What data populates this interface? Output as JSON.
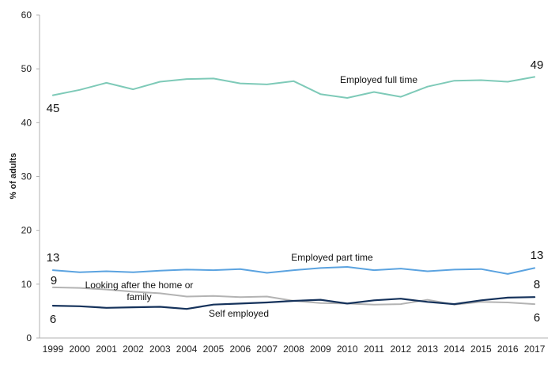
{
  "chart_data": {
    "type": "line",
    "title": "",
    "xlabel": "",
    "ylabel": "% of adults",
    "ylim": [
      0,
      60
    ],
    "yticks": [
      "0",
      "10",
      "20",
      "30",
      "40",
      "50",
      "60"
    ],
    "grid": false,
    "categories": [
      "1999",
      "2000",
      "2001",
      "2002",
      "2003",
      "2004",
      "2005",
      "2006",
      "2007",
      "2008",
      "2009",
      "2010",
      "2011",
      "2012",
      "2013",
      "2014",
      "2015",
      "2016",
      "2017"
    ],
    "series": [
      {
        "name": "Employed full time",
        "color": "#7ecab8",
        "values": [
          45.1,
          46.1,
          47.4,
          46.2,
          47.6,
          48.1,
          48.2,
          47.3,
          47.1,
          47.7,
          45.3,
          44.6,
          45.7,
          44.8,
          46.7,
          47.8,
          47.9,
          47.6,
          48.5
        ],
        "start_label": "45",
        "end_label": "49"
      },
      {
        "name": "Employed part time",
        "color": "#5ba3e0",
        "values": [
          12.6,
          12.2,
          12.4,
          12.2,
          12.5,
          12.7,
          12.6,
          12.8,
          12.1,
          12.6,
          13.0,
          13.2,
          12.6,
          12.9,
          12.4,
          12.7,
          12.8,
          11.9,
          13.0
        ],
        "start_label": "13",
        "end_label": "13"
      },
      {
        "name": "Looking after the home or family",
        "color": "#b3b3b3",
        "values": [
          9.4,
          9.3,
          9.0,
          8.6,
          8.3,
          7.7,
          7.8,
          7.6,
          7.7,
          6.9,
          6.5,
          6.4,
          6.2,
          6.3,
          7.1,
          6.2,
          6.7,
          6.6,
          6.3
        ],
        "start_label": "9",
        "end_label": "6"
      },
      {
        "name": "Self employed",
        "color": "#15325b",
        "values": [
          6.0,
          5.9,
          5.6,
          5.7,
          5.8,
          5.4,
          6.2,
          6.4,
          6.6,
          6.9,
          7.1,
          6.4,
          7.0,
          7.3,
          6.7,
          6.3,
          7.0,
          7.5,
          7.6
        ],
        "start_label": "6",
        "end_label": "8"
      }
    ],
    "annotations": {
      "full_time": "Employed full time",
      "part_time": "Employed part time",
      "home_line1": "Looking after the home or",
      "home_line2": "family",
      "self_employed": "Self employed"
    }
  }
}
